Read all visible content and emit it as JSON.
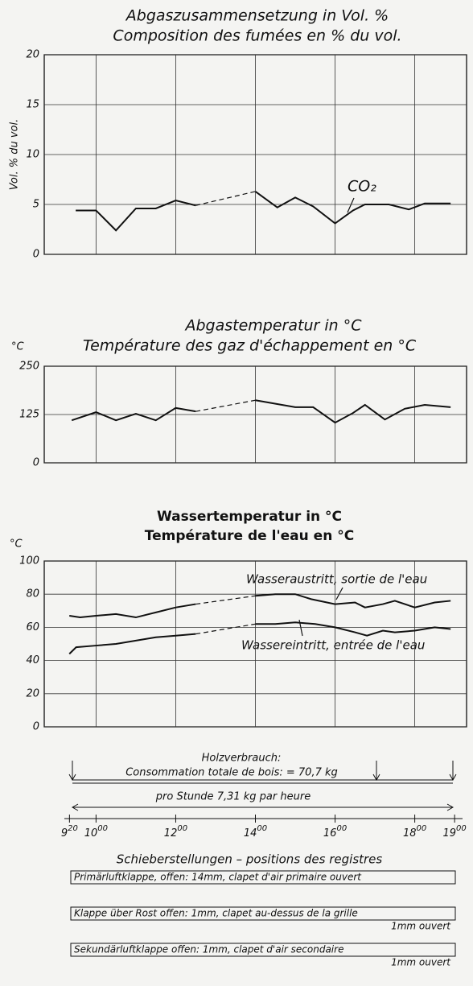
{
  "chart_data": [
    {
      "type": "line",
      "title": [
        "Abgaszusammensetzung in Vol. %",
        "Composition des fumées en % du vol."
      ],
      "y_label": "Vol. % du vol.",
      "ylim": [
        0,
        20
      ],
      "yticks": [
        0,
        5,
        10,
        15,
        20
      ],
      "xlim": [
        8.7,
        19.3
      ],
      "xgrid": [
        10,
        12,
        14,
        16,
        18
      ],
      "grid": true,
      "series": [
        {
          "name": "CO₂",
          "color": "#111",
          "x": [
            9.49,
            10,
            10.5,
            11,
            11.5,
            12,
            12.5,
            14,
            14.55,
            15,
            15.45,
            16,
            16.45,
            16.75,
            17.35,
            17.85,
            18.25,
            18.9
          ],
          "values": [
            4.4,
            4.4,
            2.4,
            4.6,
            4.6,
            5.4,
            4.9,
            6.3,
            4.7,
            5.7,
            4.8,
            3.1,
            4.4,
            5.0,
            5.0,
            4.5,
            5.1,
            5.1
          ],
          "dashed_after": [
            6
          ]
        }
      ]
    },
    {
      "type": "line",
      "title": [
        "Abgastemperatur in °C",
        "Température des gaz d'échappement en °C"
      ],
      "y_label": "°C",
      "ylim": [
        0,
        250
      ],
      "yticks": [
        0,
        125,
        250
      ],
      "xlim": [
        8.7,
        19.3
      ],
      "xgrid": [
        10,
        12,
        14,
        16,
        18
      ],
      "grid": true,
      "series": [
        {
          "name": "Abgastemperatur",
          "color": "#111",
          "x": [
            9.39,
            10,
            10.5,
            11,
            11.5,
            12,
            12.5,
            14,
            14.55,
            15,
            15.45,
            16,
            16.45,
            16.75,
            17.25,
            17.75,
            18.25,
            18.9
          ],
          "values": [
            110,
            131,
            110,
            127,
            110,
            142,
            133,
            162,
            152,
            144,
            144,
            104,
            129,
            150,
            112,
            140,
            150,
            144
          ],
          "dashed_after": [
            6
          ]
        }
      ]
    },
    {
      "type": "line",
      "title": [
        "Wassertemperatur in °C",
        "Température de l'eau en °C"
      ],
      "y_label": "°C",
      "ylim": [
        0,
        100
      ],
      "yticks": [
        0,
        20,
        40,
        60,
        80,
        100
      ],
      "xlim": [
        8.7,
        19.3
      ],
      "xgrid": [
        10,
        12,
        14,
        16,
        18
      ],
      "grid": true,
      "series": [
        {
          "name": "Wasseraustritt, sortie de l'eau",
          "color": "#111",
          "x": [
            9.33,
            9.6,
            10,
            10.5,
            11,
            11.5,
            12,
            12.5,
            14,
            14.5,
            15,
            15.4,
            16,
            16.5,
            16.75,
            17.2,
            17.5,
            18,
            18.5,
            18.9
          ],
          "values": [
            67,
            66,
            67,
            68,
            66,
            69,
            72,
            74,
            79,
            80,
            80,
            77,
            74,
            75,
            72,
            74,
            76,
            72,
            75,
            76
          ],
          "dashed_after": [
            7
          ]
        },
        {
          "name": "Wassereintritt, entrée de l'eau",
          "color": "#111",
          "x": [
            9.33,
            9.5,
            10,
            10.5,
            11,
            11.5,
            12,
            12.5,
            14,
            14.5,
            15,
            15.5,
            16,
            16.5,
            16.8,
            17.2,
            17.5,
            18,
            18.5,
            18.9
          ],
          "values": [
            44,
            48,
            49,
            50,
            52,
            54,
            55,
            56,
            62,
            62,
            63,
            62,
            60,
            57,
            55,
            58,
            57,
            58,
            60,
            59
          ],
          "dashed_after": [
            7
          ]
        }
      ]
    }
  ],
  "fuel": {
    "line1": "Holzverbrauch:",
    "line2": "Consommation totale de bois: = 70,7 kg",
    "per_hour": "pro Stunde  7,31 kg  par heure"
  },
  "time_axis": {
    "xlim": [
      8.7,
      19.3
    ],
    "xticks": [
      {
        "value": 9.333,
        "label": "9",
        "sup": "20"
      },
      {
        "value": 10,
        "label": "10",
        "sup": "00"
      },
      {
        "value": 12,
        "label": "12",
        "sup": "00"
      },
      {
        "value": 14,
        "label": "14",
        "sup": "00"
      },
      {
        "value": 16,
        "label": "16",
        "sup": "00"
      },
      {
        "value": 18,
        "label": "18",
        "sup": "00"
      },
      {
        "value": 19,
        "label": "19",
        "sup": "00"
      }
    ]
  },
  "registers": {
    "title": "Schieberstellungen – positions des registres",
    "items": [
      {
        "text": "Primärluftklappe, offen: 14mm, clapet d'air primaire ouvert"
      },
      {
        "text": "Klappe über Rost offen: 1mm, clapet au-dessus de la grille",
        "note": "1mm ouvert"
      },
      {
        "text": "Sekundärluftklappe offen: 1mm, clapet d'air secondaire",
        "note": "1mm ouvert"
      }
    ]
  }
}
